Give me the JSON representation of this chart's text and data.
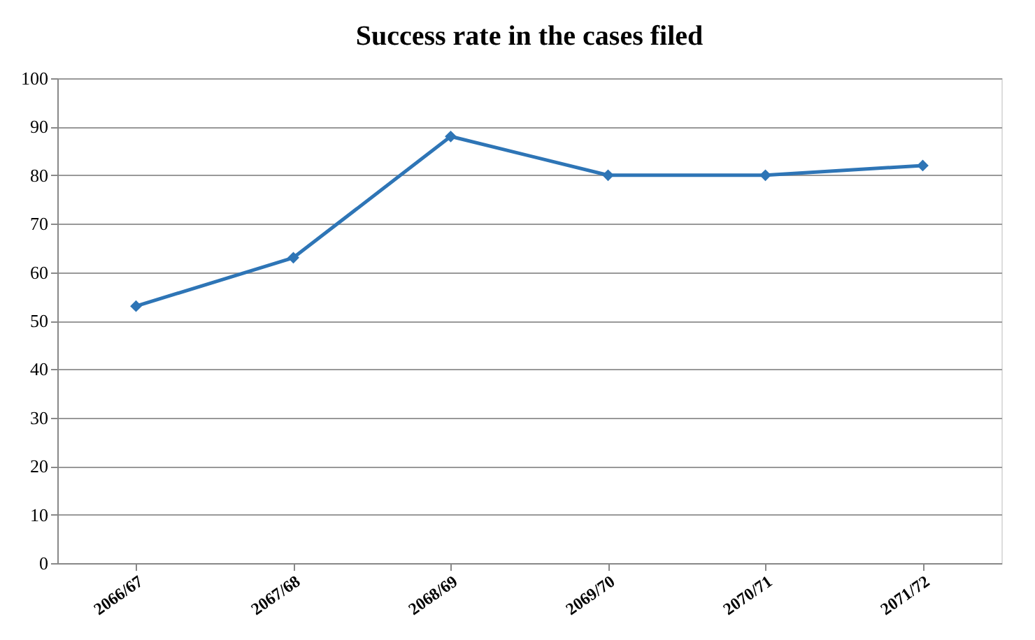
{
  "chart_data": {
    "type": "line",
    "title": "Success rate in the cases filed",
    "categories": [
      "2066/67",
      "2067/68",
      "2068/69",
      "2069/70",
      "2070/71",
      "2071/72"
    ],
    "series": [
      {
        "color": "#2e75b6",
        "values": [
          53,
          63,
          88,
          80,
          80,
          82
        ]
      }
    ],
    "ylim": [
      0,
      100
    ],
    "yticks": [
      0,
      10,
      20,
      30,
      40,
      50,
      60,
      70,
      80,
      90,
      100
    ],
    "grid": "y",
    "marker": "diamond",
    "line_style": "solid"
  }
}
